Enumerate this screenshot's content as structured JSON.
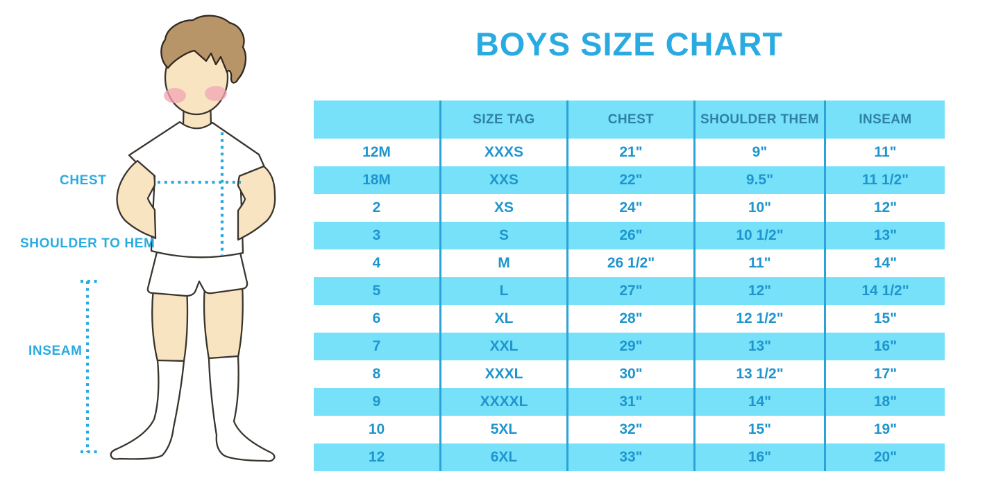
{
  "title": "BOYS SIZE CHART",
  "colors": {
    "accent": "#29ABE2",
    "row_blue": "#77E1FA",
    "separator": "#2BA3D6",
    "cell_text": "#1E95CD",
    "header_text": "#2F80A5"
  },
  "figure": {
    "labels": {
      "chest": "CHEST",
      "shoulder_to_hem": "SHOULDER TO HEM",
      "inseam": "INSEAM"
    }
  },
  "table": {
    "headers": [
      "",
      "SIZE TAG",
      "CHEST",
      "SHOULDER THEM",
      "INSEAM"
    ],
    "rows": [
      [
        "12M",
        "XXXS",
        "21\"",
        "9\"",
        "11\""
      ],
      [
        "18M",
        "XXS",
        "22\"",
        "9.5\"",
        "11 1/2\""
      ],
      [
        "2",
        "XS",
        "24\"",
        "10\"",
        "12\""
      ],
      [
        "3",
        "S",
        "26\"",
        "10 1/2\"",
        "13\""
      ],
      [
        "4",
        "M",
        "26 1/2\"",
        "11\"",
        "14\""
      ],
      [
        "5",
        "L",
        "27\"",
        "12\"",
        "14 1/2\""
      ],
      [
        "6",
        "XL",
        "28\"",
        "12 1/2\"",
        "15\""
      ],
      [
        "7",
        "XXL",
        "29\"",
        "13\"",
        "16\""
      ],
      [
        "8",
        "XXXL",
        "30\"",
        "13 1/2\"",
        "17\""
      ],
      [
        "9",
        "XXXXL",
        "31\"",
        "14\"",
        "18\""
      ],
      [
        "10",
        "5XL",
        "32\"",
        "15\"",
        "19\""
      ],
      [
        "12",
        "6XL",
        "33\"",
        "16\"",
        "20\""
      ]
    ]
  }
}
